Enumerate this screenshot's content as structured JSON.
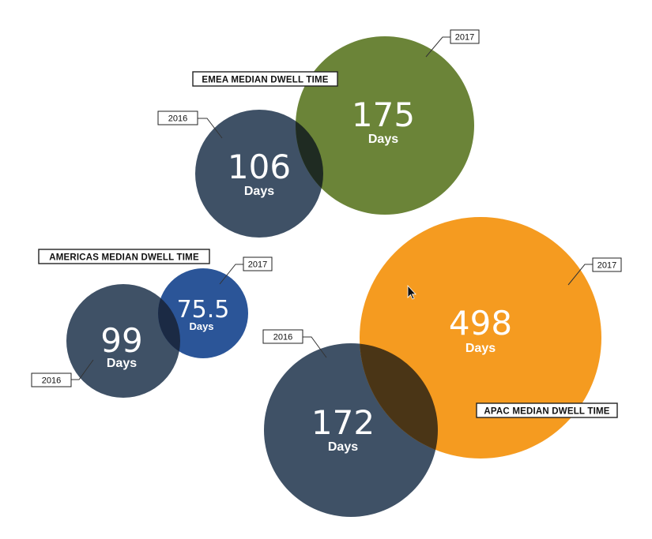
{
  "chart_data": {
    "type": "bubble",
    "groups": [
      {
        "id": "emea",
        "title": "EMEA MEDIAN DWELL TIME",
        "bubbles": [
          {
            "year": "2016",
            "value": "106",
            "unit": "Days",
            "color": "#3f5166"
          },
          {
            "year": "2017",
            "value": "175",
            "unit": "Days",
            "color": "#6b8438"
          }
        ]
      },
      {
        "id": "americas",
        "title": "AMERICAS MEDIAN DWELL TIME",
        "bubbles": [
          {
            "year": "2016",
            "value": "99",
            "unit": "Days",
            "color": "#3f5166"
          },
          {
            "year": "2017",
            "value": "75.5",
            "unit": "Days",
            "color": "#2b5598"
          }
        ]
      },
      {
        "id": "apac",
        "title": "APAC MEDIAN DWELL TIME",
        "bubbles": [
          {
            "year": "2016",
            "value": "172",
            "unit": "Days",
            "color": "#3f5166"
          },
          {
            "year": "2017",
            "value": "498",
            "unit": "Days",
            "color": "#f59b20"
          }
        ]
      }
    ],
    "overlap_colors": {
      "emea": "#1f2b22",
      "americas": "#1b2a44",
      "apac": "#4a3516"
    }
  }
}
